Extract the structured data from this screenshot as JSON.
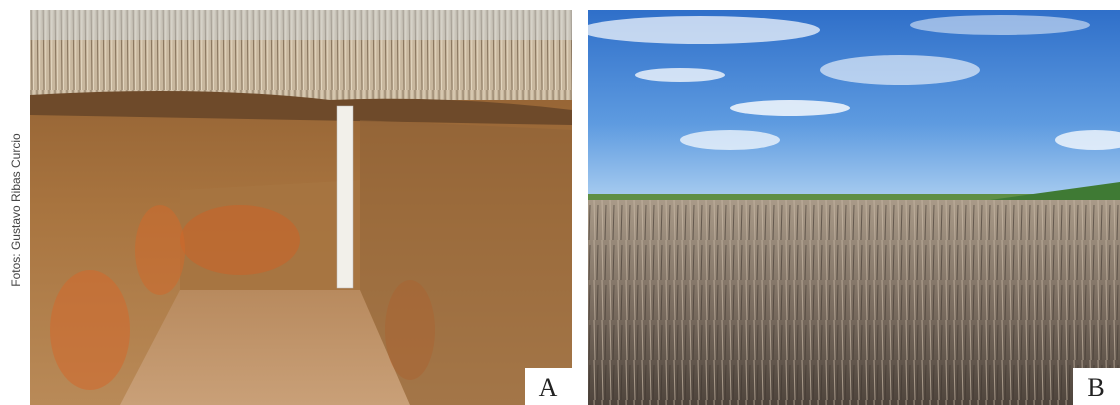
{
  "credit": "Fotos: Gustavo Ribas Curcio",
  "panels": [
    {
      "label": "A"
    },
    {
      "label": "B"
    }
  ]
}
